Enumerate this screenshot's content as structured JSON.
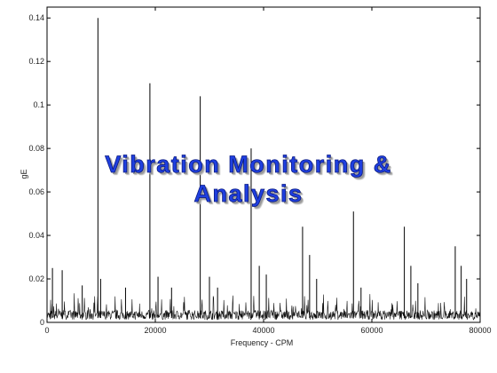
{
  "chart_data": {
    "type": "line",
    "title": "",
    "xlabel": "Frequency - CPM",
    "ylabel": "gE",
    "xlim": [
      0,
      80000
    ],
    "ylim": [
      0,
      0.145
    ],
    "x_ticks": [
      0,
      20000,
      40000,
      60000,
      80000
    ],
    "y_ticks": [
      0,
      0.02,
      0.04,
      0.06,
      0.08,
      0.1,
      0.12,
      0.14
    ],
    "grid": false,
    "series": [
      {
        "peaks": [
          {
            "x": 1000,
            "y": 0.025
          },
          {
            "x": 2800,
            "y": 0.024
          },
          {
            "x": 6500,
            "y": 0.017
          },
          {
            "x": 9400,
            "y": 0.14
          },
          {
            "x": 9900,
            "y": 0.02
          },
          {
            "x": 14500,
            "y": 0.016
          },
          {
            "x": 19000,
            "y": 0.11
          },
          {
            "x": 20500,
            "y": 0.021
          },
          {
            "x": 23000,
            "y": 0.016
          },
          {
            "x": 28300,
            "y": 0.104
          },
          {
            "x": 30000,
            "y": 0.021
          },
          {
            "x": 31500,
            "y": 0.016
          },
          {
            "x": 37700,
            "y": 0.08
          },
          {
            "x": 39200,
            "y": 0.026
          },
          {
            "x": 40500,
            "y": 0.022
          },
          {
            "x": 47200,
            "y": 0.044
          },
          {
            "x": 48500,
            "y": 0.031
          },
          {
            "x": 49800,
            "y": 0.02
          },
          {
            "x": 56600,
            "y": 0.051
          },
          {
            "x": 58000,
            "y": 0.016
          },
          {
            "x": 66000,
            "y": 0.044
          },
          {
            "x": 67200,
            "y": 0.026
          },
          {
            "x": 68500,
            "y": 0.018
          },
          {
            "x": 75400,
            "y": 0.035
          },
          {
            "x": 76500,
            "y": 0.026
          },
          {
            "x": 77500,
            "y": 0.02
          }
        ],
        "noise_floor": 0.004
      }
    ]
  },
  "overlay": {
    "line1": "Vibration Monitoring &",
    "line2": "Analysis"
  }
}
